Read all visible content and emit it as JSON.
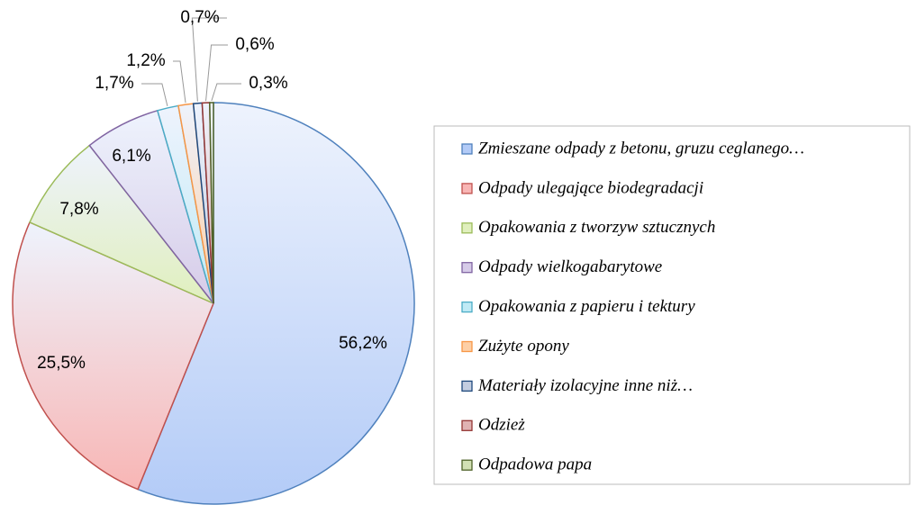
{
  "chart_data": {
    "type": "pie",
    "categories": [
      "Zmieszane odpady z betonu, gruzu ceglanego…",
      "Odpady ulegające biodegradacji",
      "Opakowania z tworzyw sztucznych",
      "Odpady wielkogabarytowe",
      "Opakowania z papieru i tektury",
      "Zużyte opony",
      "Materiały izolacyjne inne niż…",
      "Odzież",
      "Odpadowa papa"
    ],
    "values": [
      56.2,
      25.5,
      7.8,
      6.1,
      1.7,
      1.2,
      0.7,
      0.6,
      0.3
    ],
    "value_labels": [
      "56,2%",
      "25,5%",
      "7,8%",
      "6,1%",
      "1,7%",
      "1,2%",
      "0,7%",
      "0,6%",
      "0,3%"
    ],
    "colors": [
      "#4f81bd",
      "#c0504d",
      "#9bbb59",
      "#8064a2",
      "#4bacc6",
      "#f79646",
      "#1f497d",
      "#943634",
      "#4f6228"
    ],
    "fills": [
      "#b3cbf7",
      "#f8b6b5",
      "#e0efbd",
      "#d6cbe8",
      "#bfeaf5",
      "#fdcfa6",
      "#c3cde0",
      "#e0b2b2",
      "#d2e0b4"
    ],
    "legend": "right"
  }
}
